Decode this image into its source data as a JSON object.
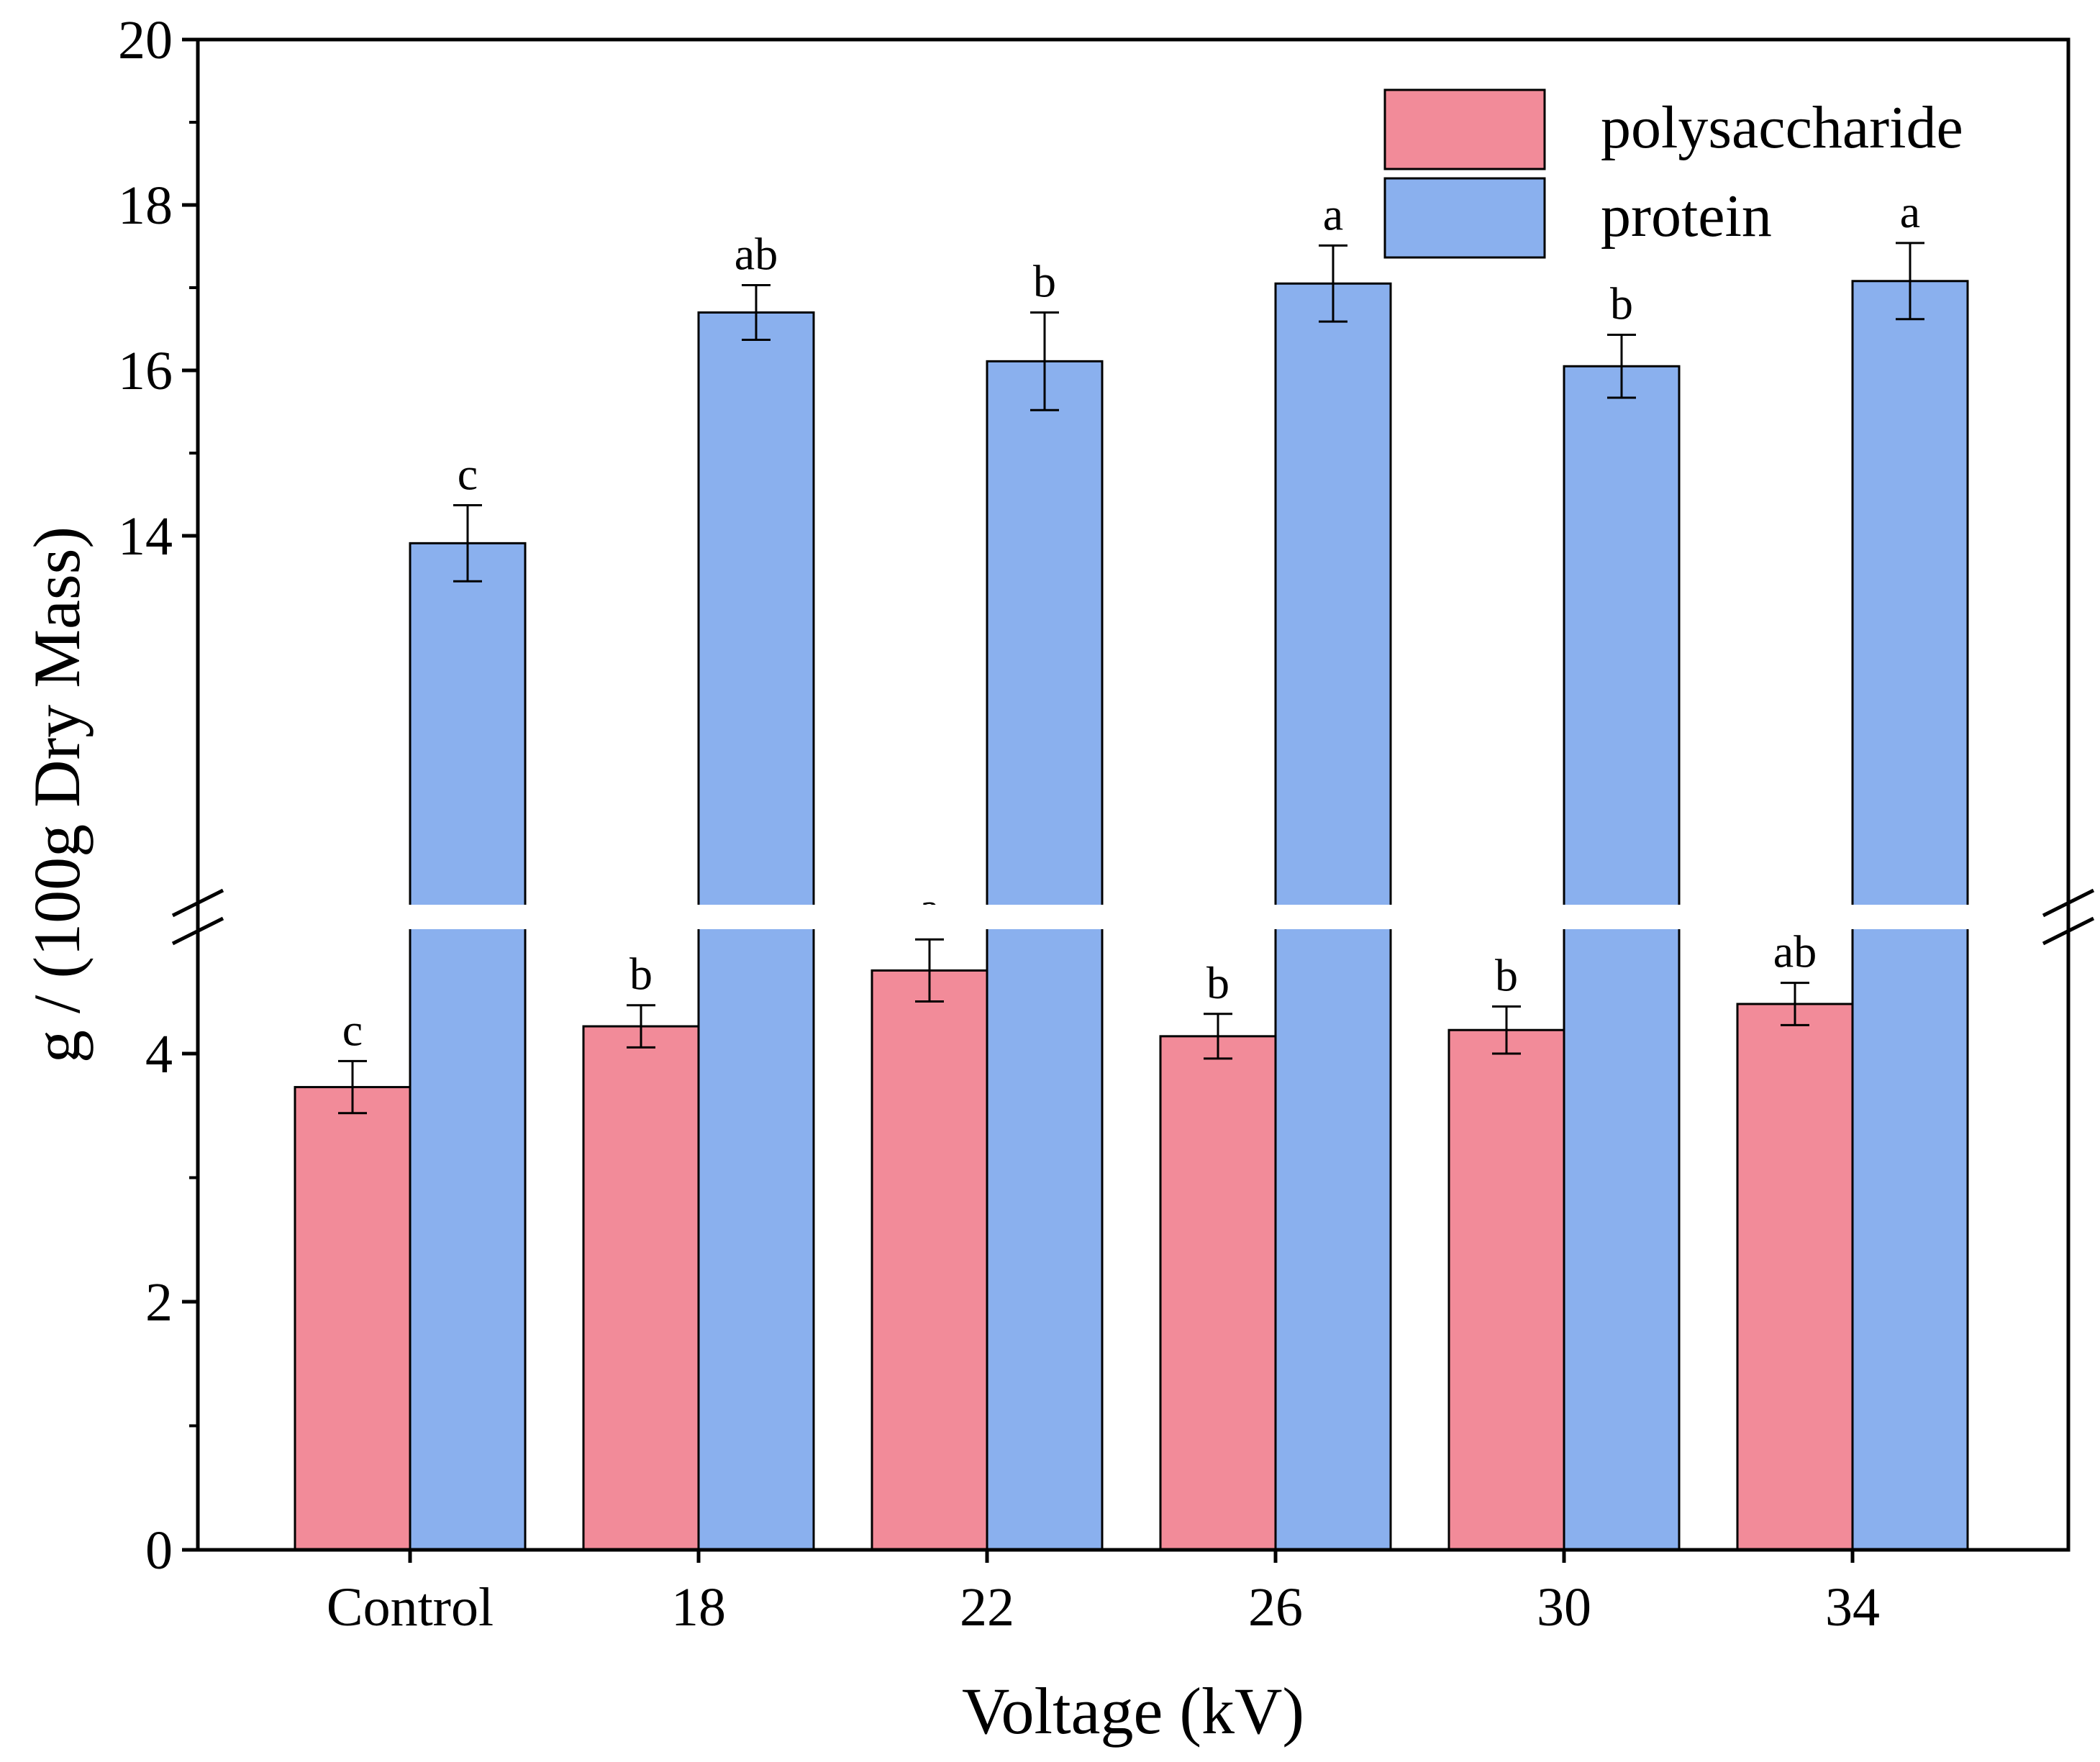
{
  "chart_data": {
    "type": "bar",
    "xlabel": "Voltage (kV)",
    "ylabel": "g / (100g Dry Mass)",
    "categories": [
      "Control",
      "18",
      "22",
      "26",
      "30",
      "34"
    ],
    "y_axis_break": [
      5,
      13
    ],
    "ylim": [
      0,
      20
    ],
    "yticks": [
      {
        "value": 0,
        "label": "0"
      },
      {
        "value": 2,
        "label": "2"
      },
      {
        "value": 4,
        "label": "4"
      },
      {
        "value": 14,
        "label": "14"
      },
      {
        "value": 16,
        "label": "16"
      },
      {
        "value": 18,
        "label": "18"
      },
      {
        "value": 20,
        "label": "20"
      }
    ],
    "minor_yticks": [
      1,
      3,
      15,
      17,
      19
    ],
    "legend_position": "top-right",
    "series": [
      {
        "name": "polysaccharide",
        "color": "#f28b99",
        "values": [
          3.73,
          4.22,
          4.67,
          4.14,
          4.19,
          4.4
        ],
        "errors": [
          0.21,
          0.17,
          0.25,
          0.18,
          0.19,
          0.17
        ],
        "letters": [
          "c",
          "b",
          "a",
          "b",
          "b",
          "ab"
        ]
      },
      {
        "name": "protein",
        "color": "#8ab0ee",
        "values": [
          13.91,
          16.7,
          16.11,
          17.05,
          16.05,
          17.08
        ],
        "errors": [
          0.46,
          0.33,
          0.59,
          0.46,
          0.38,
          0.46
        ],
        "letters": [
          "c",
          "ab",
          "b",
          "a",
          "b",
          "a"
        ]
      }
    ]
  }
}
